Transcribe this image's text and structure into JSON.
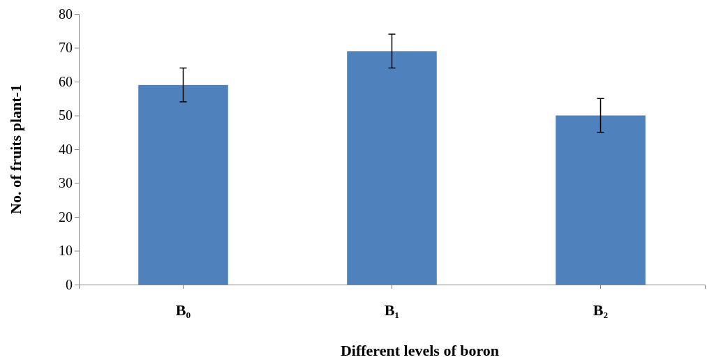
{
  "chart_data": {
    "type": "bar",
    "xlabel": "Different levels of boron",
    "ylabel": "No. of fruits plant-1",
    "categories": [
      "B₀",
      "B₁",
      "B₂"
    ],
    "values": [
      59,
      69,
      50
    ],
    "errors": [
      5,
      5,
      5
    ],
    "color": "#4f81bd",
    "ylim": [
      0,
      80
    ],
    "yticks": [
      0,
      10,
      20,
      30,
      40,
      50,
      60,
      70,
      80
    ],
    "grid": false
  }
}
